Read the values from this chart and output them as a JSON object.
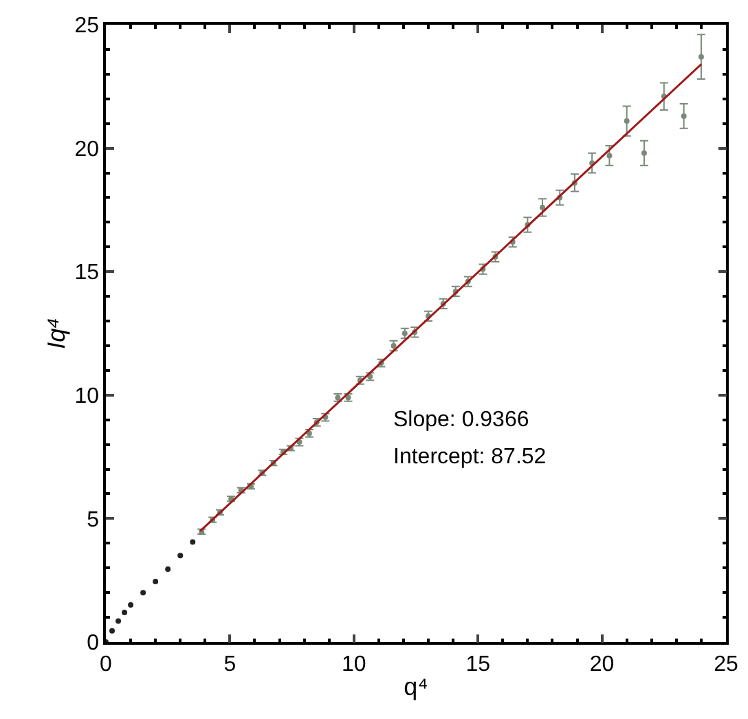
{
  "chart_data": {
    "type": "scatter",
    "xlabel": "q⁴",
    "ylabel": "Iq⁴",
    "xlim": [
      0,
      25
    ],
    "ylim": [
      0,
      25
    ],
    "xticks": [
      0,
      5,
      10,
      15,
      20,
      25
    ],
    "yticks": [
      0,
      5,
      10,
      15,
      20,
      25
    ],
    "grid": false,
    "annotations": [
      "Slope: 0.9366",
      "Intercept: 87.52"
    ],
    "series": [
      {
        "type": "scatter",
        "marker": "circle",
        "color": "#222222",
        "x": [
          0,
          0.25,
          0.5,
          0.75,
          1,
          1.5,
          2,
          2.5,
          3,
          3.5
        ],
        "values": [
          0,
          0.45,
          0.85,
          1.2,
          1.5,
          2.0,
          2.45,
          2.95,
          3.5,
          4.05
        ]
      },
      {
        "type": "scatter",
        "marker": "circle",
        "color": "#7a8a7a",
        "x": [
          3.86,
          4.3,
          4.6,
          5.05,
          5.45,
          5.85,
          6.3,
          6.75,
          7.15,
          7.45,
          7.8,
          8.2,
          8.5,
          8.85,
          9.35,
          9.77,
          10.25,
          10.65,
          11.1,
          11.6,
          12.05,
          12.45,
          13.0,
          13.6,
          14.1,
          14.6,
          15.2,
          15.7,
          16.4,
          17.0,
          17.6,
          18.3,
          18.9,
          19.6,
          20.3,
          21.0,
          21.7,
          22.5,
          23.3,
          24.0
        ],
        "values": [
          4.47,
          4.95,
          5.25,
          5.8,
          6.15,
          6.3,
          6.85,
          7.25,
          7.7,
          7.85,
          8.1,
          8.45,
          8.9,
          9.1,
          9.9,
          9.9,
          10.6,
          10.75,
          11.3,
          12.0,
          12.5,
          12.55,
          13.2,
          13.7,
          14.2,
          14.6,
          15.1,
          15.6,
          16.2,
          16.9,
          17.6,
          18.0,
          18.6,
          19.4,
          19.7,
          21.1,
          19.8,
          22.1,
          21.3,
          23.7
        ],
        "errors": [
          0.1,
          0.1,
          0.1,
          0.1,
          0.1,
          0.1,
          0.1,
          0.1,
          0.1,
          0.1,
          0.15,
          0.15,
          0.15,
          0.15,
          0.15,
          0.15,
          0.15,
          0.15,
          0.15,
          0.2,
          0.2,
          0.2,
          0.2,
          0.2,
          0.2,
          0.2,
          0.2,
          0.2,
          0.2,
          0.3,
          0.35,
          0.3,
          0.35,
          0.4,
          0.4,
          0.6,
          0.5,
          0.55,
          0.5,
          0.9
        ]
      },
      {
        "type": "line",
        "color": "#a01818",
        "x": [
          3.8,
          24
        ],
        "values": [
          4.49,
          23.4
        ]
      }
    ]
  }
}
